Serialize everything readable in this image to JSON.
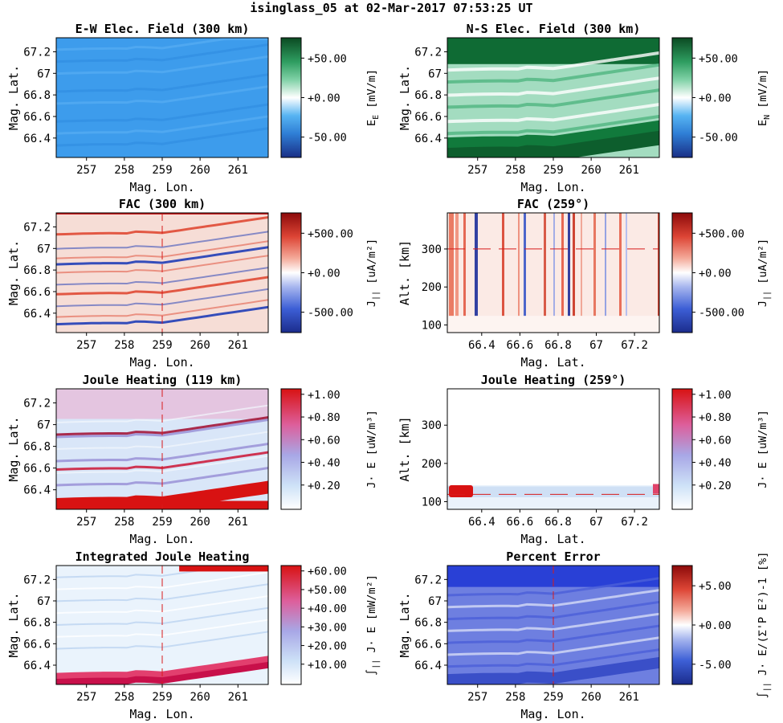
{
  "figure": {
    "title": "isinglass_05 at 02-Mar-2017 07:53:25 UT"
  },
  "chart_data": [
    {
      "type": "heatmap",
      "id": "ew",
      "title": "E-W Elec. Field (300 km)",
      "xlabel": "Mag. Lon.",
      "ylabel": "Mag. Lat.",
      "xlim": [
        256.2,
        261.8
      ],
      "ylim": [
        66.22,
        67.33
      ],
      "xticks": [
        "257",
        "258",
        "259",
        "260",
        "261"
      ],
      "yticks": [
        "66.4",
        "66.6",
        "66.8",
        "67",
        "67.2"
      ],
      "colormap": "blue-white-green",
      "colorbar": {
        "ticks": [
          "+50.00",
          "+0.00",
          "-50.00"
        ],
        "label_main": "E",
        "label_sub": "E",
        "label_unit": "[mV/m]"
      },
      "overlay_line_x": null,
      "overlay_line_y": null,
      "description_fill": "uniform negative (~-30 mV/m) with faint banded structure"
    },
    {
      "type": "heatmap",
      "id": "ns",
      "title": "N-S Elec. Field (300 km)",
      "xlabel": "Mag. Lon.",
      "ylabel": "Mag. Lat.",
      "xlim": [
        256.2,
        261.8
      ],
      "ylim": [
        66.22,
        67.33
      ],
      "xticks": [
        "257",
        "258",
        "259",
        "260",
        "261"
      ],
      "yticks": [
        "66.4",
        "66.6",
        "66.8",
        "67",
        "67.2"
      ],
      "colormap": "blue-white-green",
      "colorbar": {
        "ticks": [
          "+50.00",
          "+0.00",
          "-50.00"
        ],
        "label_main": "E",
        "label_sub": "N",
        "label_unit": "[mV/m]"
      },
      "overlay_line_x": null,
      "overlay_line_y": null
    },
    {
      "type": "heatmap",
      "id": "fac",
      "title": "FAC (300 km)",
      "xlabel": "Mag. Lon.",
      "ylabel": "Mag. Lat.",
      "xlim": [
        256.2,
        261.8
      ],
      "ylim": [
        66.22,
        67.33
      ],
      "xticks": [
        "257",
        "258",
        "259",
        "260",
        "261"
      ],
      "yticks": [
        "66.4",
        "66.6",
        "66.8",
        "67",
        "67.2"
      ],
      "colormap": "blue-white-red",
      "colorbar": {
        "ticks": [
          "+500.00",
          "+0.00",
          "-500.00"
        ],
        "label_main": "J",
        "label_sub": "||",
        "label_unit": "[uA/m²]"
      },
      "overlay_line_x": 259,
      "overlay_line_y": null
    },
    {
      "type": "heatmap",
      "id": "fac_alt",
      "title": "FAC (259°)",
      "xlabel": "Mag. Lat.",
      "ylabel": "Alt. [km]",
      "xlim": [
        66.22,
        67.33
      ],
      "ylim": [
        80,
        395
      ],
      "xticks": [
        "66.4",
        "66.6",
        "66.8",
        "67",
        "67.2"
      ],
      "yticks": [
        "100",
        "200",
        "300"
      ],
      "colormap": "blue-white-red",
      "colorbar": {
        "ticks": [
          "+500.00",
          "+0.00",
          "-500.00"
        ],
        "label_main": "J",
        "label_sub": "||",
        "label_unit": "[uA/m²]"
      },
      "overlay_line_x": null,
      "overlay_line_y": 300
    },
    {
      "type": "heatmap",
      "id": "jh",
      "title": "Joule Heating (119 km)",
      "xlabel": "Mag. Lon.",
      "ylabel": "Mag. Lat.",
      "xlim": [
        256.2,
        261.8
      ],
      "ylim": [
        66.22,
        67.33
      ],
      "xticks": [
        "257",
        "258",
        "259",
        "260",
        "261"
      ],
      "yticks": [
        "66.4",
        "66.6",
        "66.8",
        "67",
        "67.2"
      ],
      "colormap": "white-blue-purple-red",
      "colorbar": {
        "ticks": [
          "+1.00",
          "+0.80",
          "+0.60",
          "+0.40",
          "+0.20"
        ],
        "label_main": "J· E",
        "label_sub": "",
        "label_unit": "[uW/m³]"
      },
      "overlay_line_x": 259,
      "overlay_line_y": null
    },
    {
      "type": "heatmap",
      "id": "jh_alt",
      "title": "Joule Heating (259°)",
      "xlabel": "Mag. Lat.",
      "ylabel": "Alt. [km]",
      "xlim": [
        66.22,
        67.33
      ],
      "ylim": [
        80,
        395
      ],
      "xticks": [
        "66.4",
        "66.6",
        "66.8",
        "67",
        "67.2"
      ],
      "yticks": [
        "100",
        "200",
        "300"
      ],
      "colormap": "white-blue-purple-red",
      "colorbar": {
        "ticks": [
          "+1.00",
          "+0.80",
          "+0.60",
          "+0.40",
          "+0.20"
        ],
        "label_main": "J· E",
        "label_sub": "",
        "label_unit": "[uW/m³]"
      },
      "overlay_line_x": null,
      "overlay_line_y": 119
    },
    {
      "type": "heatmap",
      "id": "ijh",
      "title": "Integrated Joule Heating",
      "xlabel": "Mag. Lon.",
      "ylabel": "Mag. Lat.",
      "xlim": [
        256.2,
        261.8
      ],
      "ylim": [
        66.22,
        67.33
      ],
      "xticks": [
        "257",
        "258",
        "259",
        "260",
        "261"
      ],
      "yticks": [
        "66.4",
        "66.6",
        "66.8",
        "67",
        "67.2"
      ],
      "colormap": "white-blue-purple-red",
      "colorbar": {
        "ticks": [
          "+60.00",
          "+50.00",
          "+40.00",
          "+30.00",
          "+20.00",
          "+10.00"
        ],
        "label_main": "∫",
        "label_sub": "||",
        "label_unit": "J· E [mW/m²]"
      },
      "overlay_line_x": 259,
      "overlay_line_y": null
    },
    {
      "type": "heatmap",
      "id": "err",
      "title": "Percent Error",
      "xlabel": "Mag. Lon.",
      "ylabel": "Mag. Lat.",
      "xlim": [
        256.2,
        261.8
      ],
      "ylim": [
        66.22,
        67.33
      ],
      "xticks": [
        "257",
        "258",
        "259",
        "260",
        "261"
      ],
      "yticks": [
        "66.4",
        "66.6",
        "66.8",
        "67",
        "67.2"
      ],
      "colormap": "blue-white-red",
      "colorbar": {
        "ticks": [
          "+5.00",
          "+0.00",
          "-5.00"
        ],
        "label_main": "∫",
        "label_sub": "||",
        "label_unit": "J· E/(Σ'P E²)-1 [%]"
      },
      "overlay_line_x": 259,
      "overlay_line_y": null
    }
  ]
}
